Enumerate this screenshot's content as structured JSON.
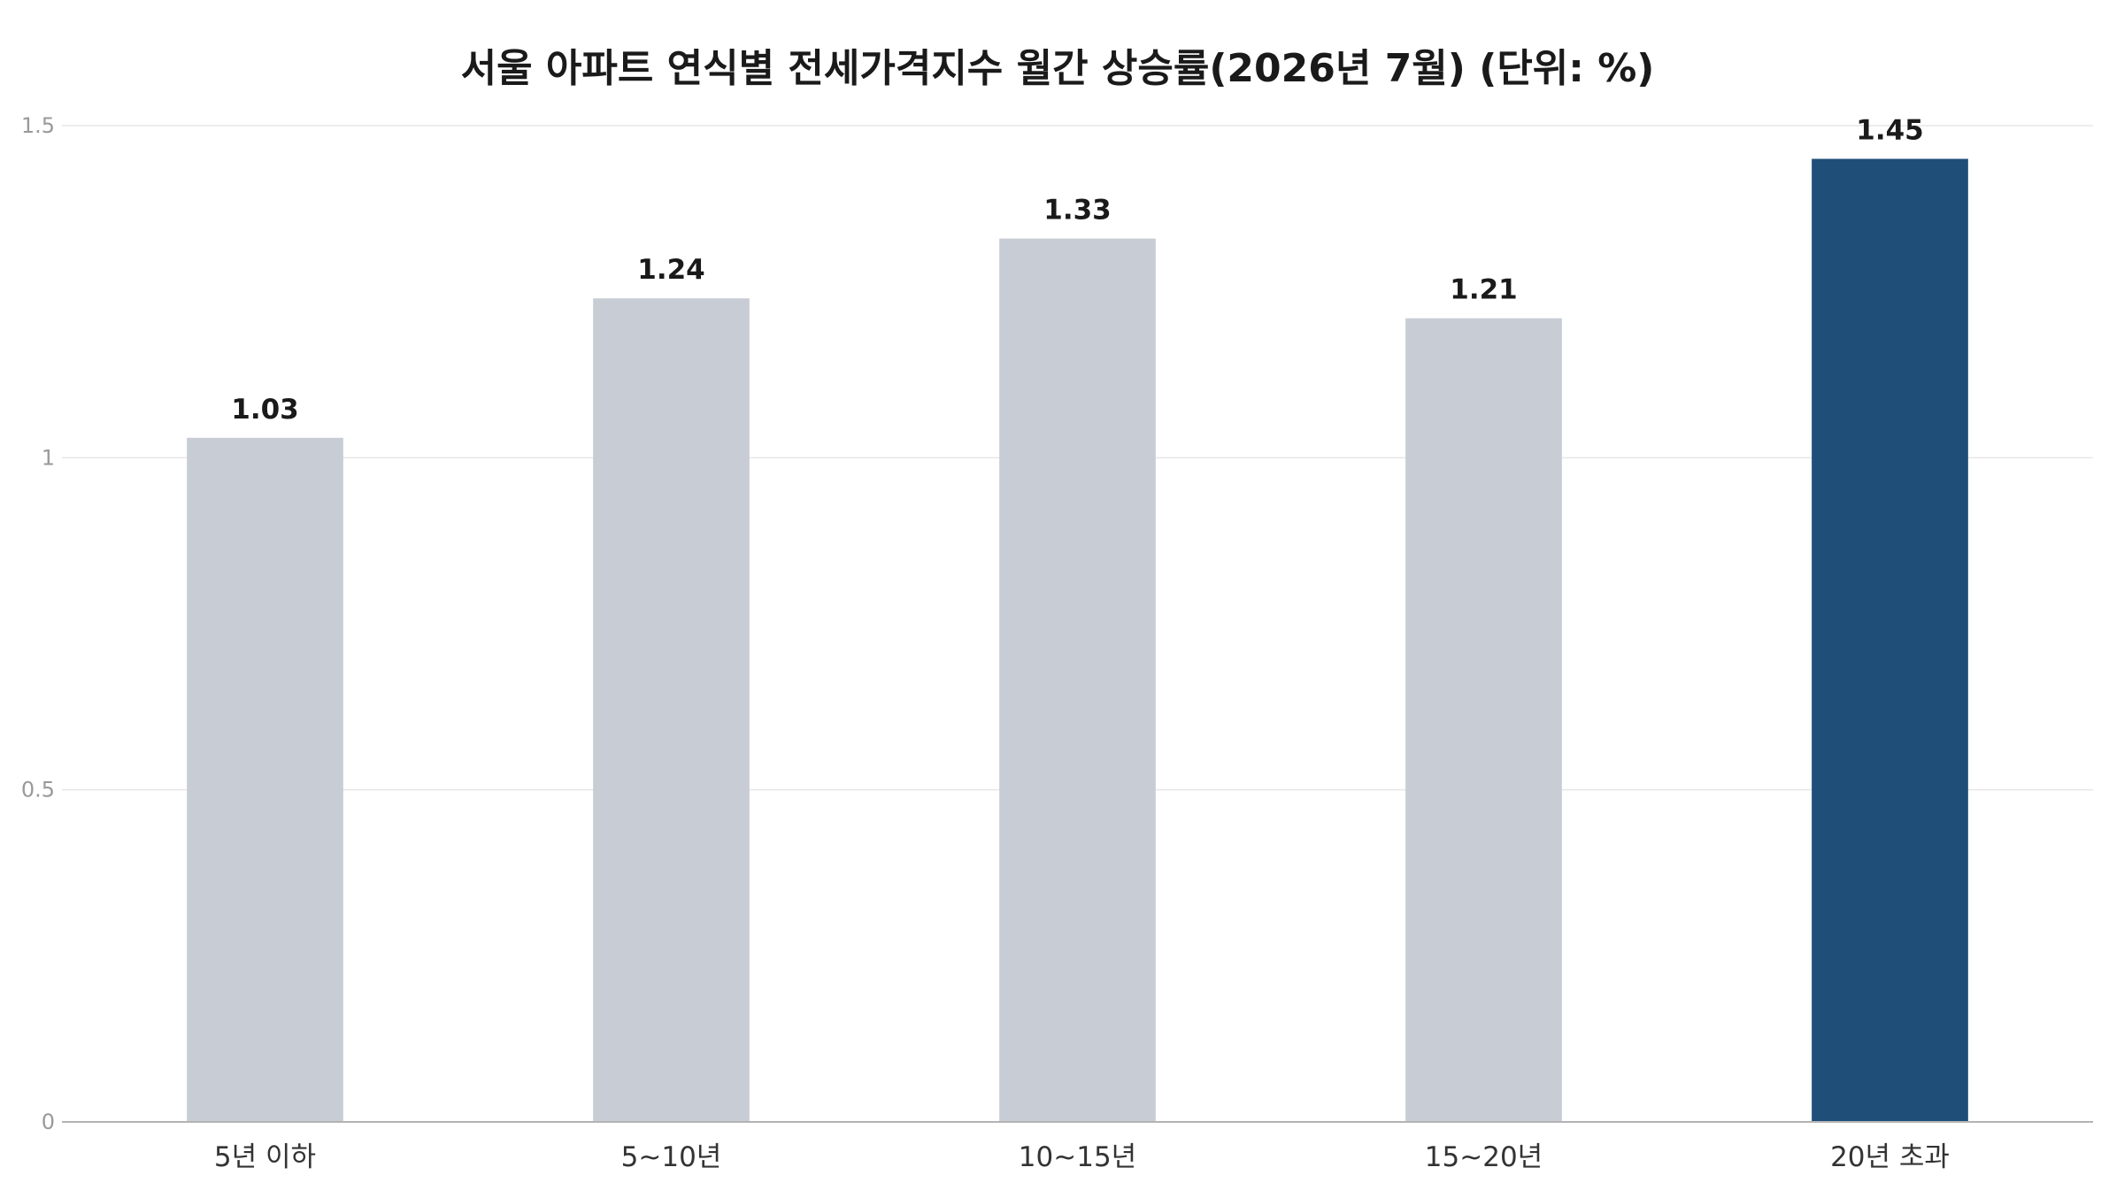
{
  "chart_data": {
    "type": "bar",
    "title": "서울 아파트 연식별 전세가격지수 월간 상승률(2026년 7월) (단위: %)",
    "xlabel": "",
    "ylabel": "",
    "categories": [
      "5년 이하",
      "5~10년",
      "10~15년",
      "15~20년",
      "20년 초과"
    ],
    "values": [
      1.03,
      1.24,
      1.33,
      1.21,
      1.45
    ],
    "data_labels": [
      "1.03",
      "1.24",
      "1.33",
      "1.21",
      "1.45"
    ],
    "ylim": [
      0,
      1.5
    ],
    "yticks": [
      0,
      0.5,
      1,
      1.5
    ],
    "ytick_labels": [
      "0",
      "0.5",
      "1",
      "1.5"
    ],
    "grid": true,
    "legend": "none",
    "colors": {
      "default_bar": "#c8cdd5",
      "highlight_bar": "#1f4e79",
      "grid": "#e6e6e6",
      "axis": "#b3b3b3",
      "tick_text": "#999999",
      "category_text": "#333333",
      "label_text": "#1a1a1a",
      "title_text": "#1a1a1a"
    },
    "highlight_index": 4
  }
}
